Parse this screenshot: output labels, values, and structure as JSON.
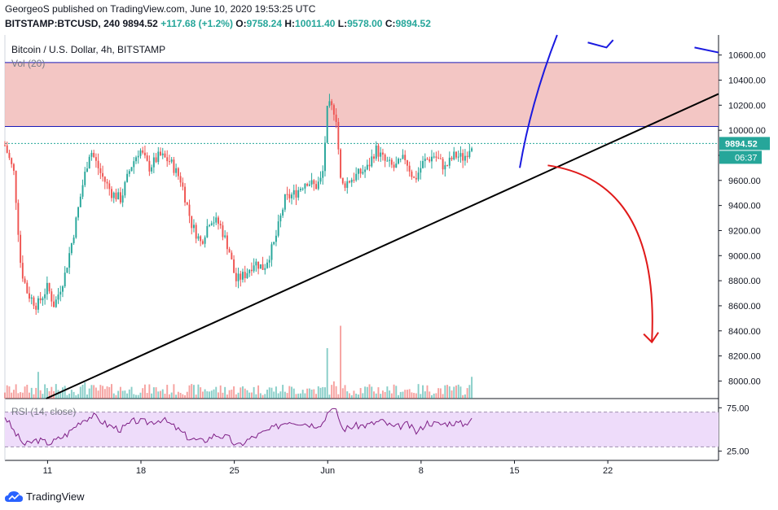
{
  "header": {
    "line1": "GeorgeoS published on TradingView.com, June 10, 2020 19:53:25 UTC",
    "symbol": "BITSTAMP:BTCUSD, 240",
    "last": "9894.52",
    "change": "+117.68 (+1.2%)",
    "o_label": "O:",
    "o_val": "9758.24",
    "h_label": "H:",
    "h_val": "10011.40",
    "l_label": "L:",
    "l_val": "9578.00",
    "c_label": "C:",
    "c_val": "9894.52"
  },
  "chart_data": {
    "type": "candlestick",
    "title": "Bitcoin / U.S. Dollar, 4h, BITSTAMP",
    "volume_label": "Vol (20)",
    "rsi_label": "RSI (14, close)",
    "y_ticks": [
      "10600.00",
      "10400.00",
      "10200.00",
      "10000.00",
      "9800.00",
      "9600.00",
      "9400.00",
      "9200.00",
      "9000.00",
      "8800.00",
      "8600.00",
      "8400.00",
      "8200.00",
      "8000.00"
    ],
    "ylim": [
      7860,
      10760
    ],
    "rsi_ticks": [
      "75.00",
      "25.00"
    ],
    "x_ticks": [
      "11",
      "18",
      "25",
      "Jun",
      "8",
      "15",
      "22"
    ],
    "x_tick_days": [
      11,
      18,
      25,
      32,
      39,
      46,
      53
    ],
    "xlim_days": [
      7.8,
      61.3
    ],
    "last_price_label": "9894.52",
    "countdown_label": "06:37",
    "resistance_zone": [
      10030,
      10540
    ],
    "support_trendline": [
      [
        10.9,
        7860
      ],
      [
        61.3,
        10290
      ]
    ],
    "blue_projection": [
      [
        46.4,
        9700
      ],
      [
        49.2,
        10760
      ]
    ],
    "red_projection": [
      [
        48.5,
        9720
      ],
      [
        56.3,
        8310
      ]
    ],
    "close_path": [
      [
        7.8,
        9880
      ],
      [
        8.5,
        9650
      ],
      [
        9.0,
        8900
      ],
      [
        9.5,
        8700
      ],
      [
        10.2,
        8600
      ],
      [
        11.0,
        8750
      ],
      [
        11.5,
        8600
      ],
      [
        12.3,
        8850
      ],
      [
        13.0,
        9200
      ],
      [
        13.6,
        9550
      ],
      [
        14.2,
        9850
      ],
      [
        15.0,
        9650
      ],
      [
        15.8,
        9500
      ],
      [
        16.5,
        9450
      ],
      [
        17.2,
        9700
      ],
      [
        17.9,
        9850
      ],
      [
        18.6,
        9700
      ],
      [
        19.4,
        9800
      ],
      [
        20.2,
        9750
      ],
      [
        21.0,
        9600
      ],
      [
        21.8,
        9250
      ],
      [
        22.5,
        9100
      ],
      [
        23.2,
        9300
      ],
      [
        23.9,
        9250
      ],
      [
        24.6,
        9050
      ],
      [
        25.1,
        8800
      ],
      [
        25.8,
        8850
      ],
      [
        26.5,
        8950
      ],
      [
        27.2,
        8900
      ],
      [
        28.0,
        9100
      ],
      [
        28.8,
        9450
      ],
      [
        29.6,
        9500
      ],
      [
        30.4,
        9600
      ],
      [
        31.1,
        9550
      ],
      [
        31.6,
        9620
      ],
      [
        32.0,
        10200
      ],
      [
        32.6,
        10150
      ],
      [
        33.0,
        9550
      ],
      [
        33.6,
        9600
      ],
      [
        34.3,
        9650
      ],
      [
        35.0,
        9700
      ],
      [
        35.6,
        9850
      ],
      [
        36.3,
        9750
      ],
      [
        37.0,
        9700
      ],
      [
        37.8,
        9780
      ],
      [
        38.5,
        9600
      ],
      [
        39.2,
        9750
      ],
      [
        40.0,
        9800
      ],
      [
        40.8,
        9700
      ],
      [
        41.5,
        9800
      ],
      [
        42.2,
        9780
      ],
      [
        42.8,
        9894
      ]
    ],
    "rsi_path": [
      [
        7.8,
        65
      ],
      [
        8.6,
        45
      ],
      [
        9.3,
        32
      ],
      [
        10.2,
        38
      ],
      [
        11.2,
        34
      ],
      [
        12.5,
        45
      ],
      [
        13.5,
        60
      ],
      [
        14.4,
        66
      ],
      [
        15.5,
        55
      ],
      [
        16.5,
        50
      ],
      [
        17.5,
        60
      ],
      [
        18.6,
        58
      ],
      [
        19.6,
        62
      ],
      [
        20.6,
        52
      ],
      [
        21.6,
        40
      ],
      [
        22.6,
        36
      ],
      [
        23.6,
        44
      ],
      [
        24.6,
        40
      ],
      [
        25.2,
        30
      ],
      [
        26.0,
        38
      ],
      [
        27.0,
        45
      ],
      [
        28.0,
        52
      ],
      [
        29.0,
        60
      ],
      [
        30.0,
        58
      ],
      [
        31.0,
        55
      ],
      [
        31.7,
        58
      ],
      [
        32.1,
        75
      ],
      [
        32.7,
        70
      ],
      [
        33.1,
        50
      ],
      [
        34.0,
        54
      ],
      [
        35.0,
        55
      ],
      [
        36.0,
        60
      ],
      [
        37.0,
        52
      ],
      [
        38.0,
        56
      ],
      [
        38.7,
        46
      ],
      [
        39.4,
        58
      ],
      [
        40.4,
        56
      ],
      [
        41.4,
        58
      ],
      [
        42.3,
        56
      ],
      [
        42.8,
        64
      ]
    ],
    "volume_peaks": [
      [
        10.3,
        3
      ],
      [
        13.8,
        2.2
      ],
      [
        32.0,
        4.8
      ],
      [
        32.5,
        3.6
      ],
      [
        33.0,
        5.8
      ],
      [
        42.8,
        2.4
      ]
    ]
  }
}
